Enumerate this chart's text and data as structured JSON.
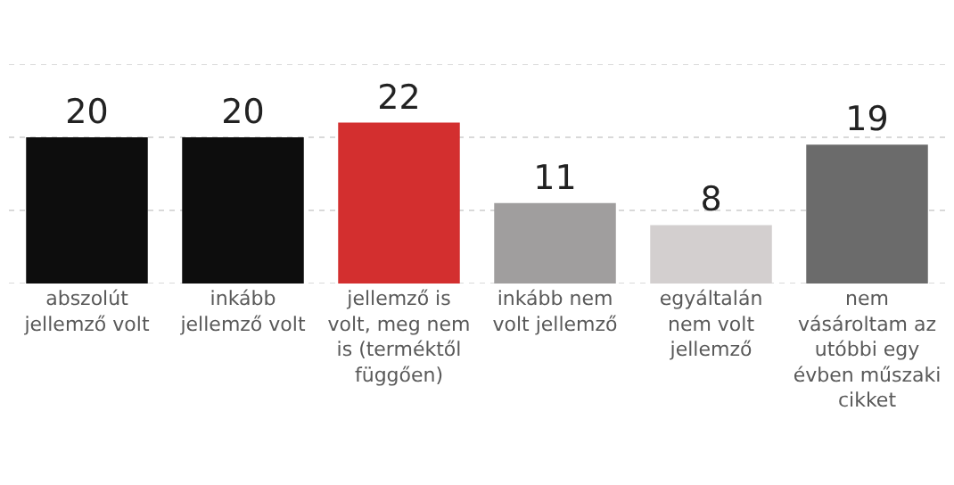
{
  "chart_data": {
    "type": "bar",
    "categories": [
      "abszolút jellemző volt",
      "inkább jellemző volt",
      "jellemző is volt, meg nem is (terméktől függően)",
      "inkább nem volt jellemző",
      "egyáltalán nem volt jellemző",
      "nem vásároltam az utóbbi egy évben műszaki cikket"
    ],
    "values": [
      20,
      20,
      22,
      11,
      8,
      19
    ],
    "colors": [
      "#0d0d0d",
      "#0d0d0d",
      "#d32f2f",
      "#a09e9e",
      "#d3cfcf",
      "#6b6b6b"
    ],
    "data_labels": true,
    "ylim": [
      0,
      30
    ],
    "yticks": [
      {
        "value": 0,
        "label": null
      },
      {
        "value": 10,
        "label": null
      },
      {
        "value": 20,
        "label": null
      },
      {
        "value": 30,
        "label": null
      }
    ],
    "grid": "y",
    "tick_labels": "x",
    "legend": false
  }
}
